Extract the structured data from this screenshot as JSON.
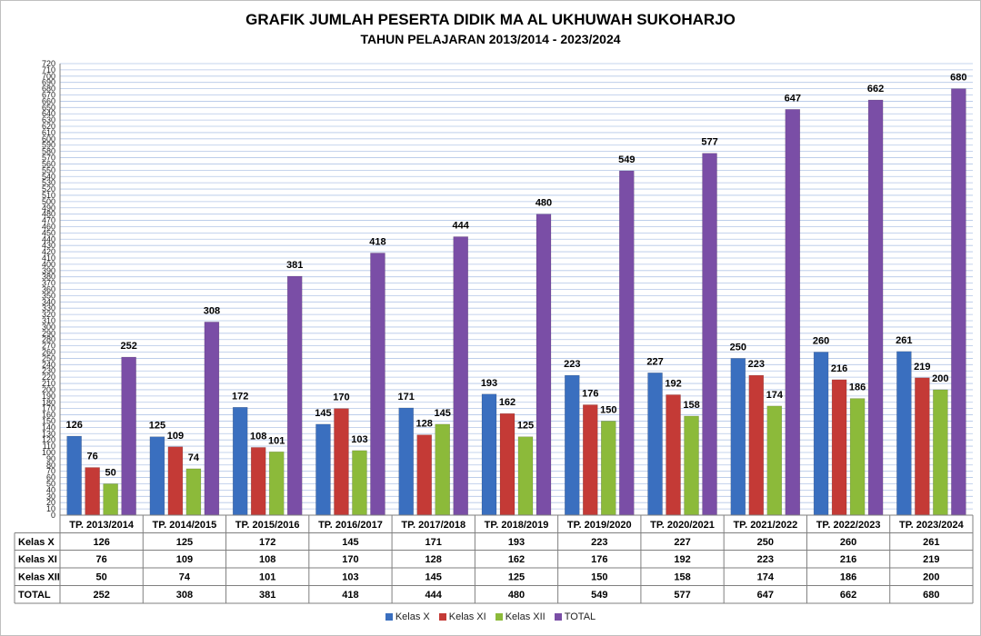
{
  "title": "GRAFIK JUMLAH PESERTA DIDIK MA AL UKHUWAH SUKOHARJO",
  "subtitle": "TAHUN PELAJARAN 2013/2014 - 2023/2024",
  "colors": {
    "Kelas X": "#3a6fbf",
    "Kelas XI": "#c43a36",
    "Kelas XII": "#8cba3a",
    "TOTAL": "#7a4ea6",
    "grid": "#b3c6e7"
  },
  "chart_data": {
    "type": "bar",
    "title": "GRAFIK JUMLAH PESERTA DIDIK MA AL UKHUWAH SUKOHARJO",
    "subtitle": "TAHUN PELAJARAN 2013/2014 - 2023/2024",
    "xlabel": "",
    "ylabel": "",
    "ylim": [
      0,
      720
    ],
    "ytick_step": 10,
    "grid": true,
    "legend": "bottom",
    "data_table": true,
    "categories": [
      "TP. 2013/2014",
      "TP. 2014/2015",
      "TP. 2015/2016",
      "TP. 2016/2017",
      "TP. 2017/2018",
      "TP. 2018/2019",
      "TP. 2019/2020",
      "TP. 2020/2021",
      "TP. 2021/2022",
      "TP. 2022/2023",
      "TP. 2023/2024"
    ],
    "series": [
      {
        "name": "Kelas X",
        "values": [
          126,
          125,
          172,
          145,
          171,
          193,
          223,
          227,
          250,
          260,
          261
        ]
      },
      {
        "name": "Kelas XI",
        "values": [
          76,
          109,
          108,
          170,
          128,
          162,
          176,
          192,
          223,
          216,
          219
        ]
      },
      {
        "name": "Kelas XII",
        "values": [
          50,
          74,
          101,
          103,
          145,
          125,
          150,
          158,
          174,
          186,
          200
        ]
      },
      {
        "name": "TOTAL",
        "values": [
          252,
          308,
          381,
          418,
          444,
          480,
          549,
          577,
          647,
          662,
          680
        ]
      }
    ]
  }
}
